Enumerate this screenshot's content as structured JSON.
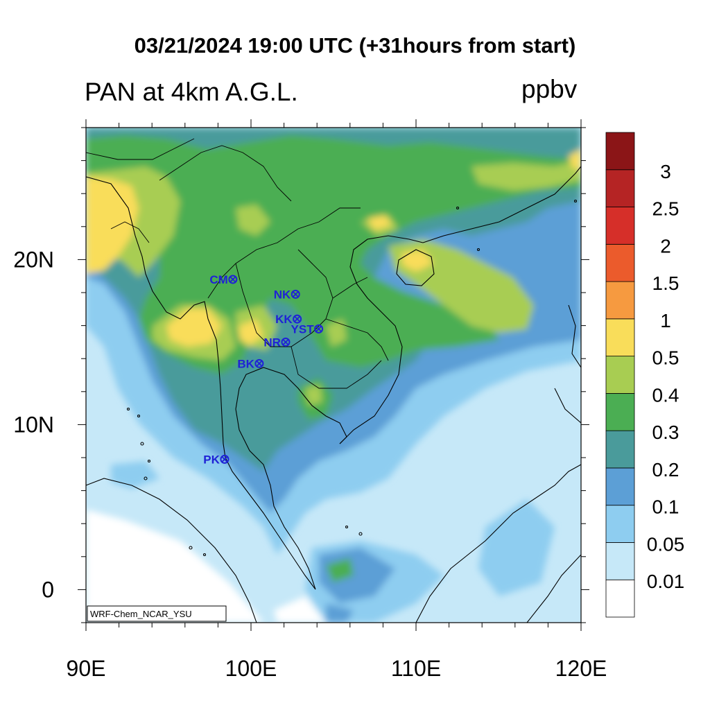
{
  "header": {
    "title": "03/21/2024 19:00 UTC (+31hours from start)",
    "variable": "PAN at 4km A.G.L.",
    "units": "ppbv"
  },
  "map": {
    "lon_range": [
      90,
      120
    ],
    "lat_range": [
      -2,
      28
    ],
    "x_tick_labels": [
      "90E",
      "100E",
      "110E",
      "120E"
    ],
    "y_tick_labels": [
      "0",
      "10N",
      "20N"
    ],
    "credit": "WRF-Chem_NCAR_YSU",
    "stations": [
      {
        "label": "CM",
        "lon": 98.9,
        "lat": 18.8
      },
      {
        "label": "NK",
        "lon": 102.7,
        "lat": 17.9
      },
      {
        "label": "KK",
        "lon": 102.8,
        "lat": 16.4
      },
      {
        "label": "YST",
        "lon": 104.1,
        "lat": 15.8
      },
      {
        "label": "NR",
        "lon": 102.1,
        "lat": 15.0
      },
      {
        "label": "BK",
        "lon": 100.5,
        "lat": 13.7
      },
      {
        "label": "PK",
        "lon": 98.4,
        "lat": 7.9
      }
    ]
  },
  "colorbar": {
    "levels": [
      "0.01",
      "0.05",
      "0.1",
      "0.2",
      "0.3",
      "0.4",
      "0.5",
      "1",
      "1.5",
      "2",
      "2.5",
      "3"
    ],
    "colors": [
      "#ffffff",
      "#c6e8f8",
      "#8ecdf0",
      "#5c9fd6",
      "#4a9b9b",
      "#4bae53",
      "#a8cd52",
      "#f9dd5a",
      "#f69a40",
      "#eb5b2c",
      "#d62f29",
      "#b52424",
      "#8b1517"
    ]
  }
}
